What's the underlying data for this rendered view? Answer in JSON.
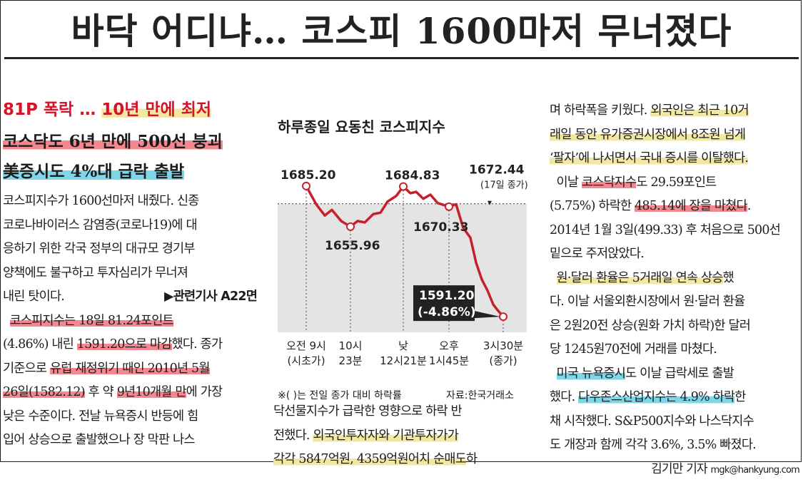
{
  "headline": "바닥 어디냐… 코스피 1600마저 무너졌다",
  "left": {
    "kicker_a": "81P 폭락 … ",
    "kicker_b": "10년 만에 최저",
    "sub1": "코스닥도 6년 만에 500선 붕괴",
    "sub2": "美증시도 4%대 급락 출발",
    "lines": [
      "코스피지수가 1600선마저 내줬다. 신종",
      "코로나바이러스 감염증(코로나19)에 대",
      "응하기 위한 각국 정부의 대규모 경기부",
      "양책에도 불구하고 투자심리가 무너져"
    ],
    "line5": "내린 탓이다.",
    "related": "▶관련기사 A22면",
    "l6a": "코스피지수는 18일 81.24포인트",
    "l7a": "(4.86%) 내린 ",
    "l7b": "1591.20으로 마감",
    "l7c": "했다. 종가",
    "l8a": "기준으로 ",
    "l8b": "유럽 재정위기 때인 2010년 5월",
    "l9a": "26일(1582.12)",
    "l9b": " 후 약 ",
    "l9c": "9년10개월 만",
    "l9d": "에 가장",
    "l10": "낮은 수준이다. 전날 뉴욕증시 반등에 힘",
    "l11": "입어 상승으로 출발했으나 장 막판 나스"
  },
  "chart": {
    "title": "하루종일 요동친 코스피지수",
    "note": "※( )는 전일 종가 대비 하락률",
    "source": "자료:한국거래소",
    "labels": {
      "open": "1685.20",
      "low1": "1655.96",
      "high": "1684.83",
      "prev": "1672.44",
      "prev_sub": "(17일 종가)",
      "mid": "1670.33",
      "close": "1591.20",
      "close_pct": "(-4.86%)"
    },
    "xticks": [
      [
        "오전 9시",
        "(시초가)"
      ],
      [
        "10시",
        "23분"
      ],
      [
        "낮",
        "12시21분"
      ],
      [
        "오후",
        "1시45분"
      ],
      [
        "3시30분",
        "(종가)"
      ]
    ]
  },
  "chart_data": {
    "type": "line",
    "title": "하루종일 요동친 코스피지수",
    "x": [
      "오전 9시(시초가)",
      "10시23분",
      "12시21분",
      "오후 1시45분",
      "3시30분(종가)"
    ],
    "series": [
      {
        "values": [
          1685.2,
          1655.96,
          1684.83,
          1670.33,
          1591.2
        ]
      }
    ],
    "reference_line": 1672.44,
    "ylim": [
      1580,
      1700
    ]
  },
  "mid_body": {
    "l1": "닥선물지수가 급락한 영향으로 하락 반",
    "l2a": "전했다. ",
    "l2b": "외국인투자자와 기관투자가가",
    "l3a": "각각 5847억원, 4359억원어치 순매도",
    "l3b": "하"
  },
  "right": {
    "r1a": "며 하락폭을 키웠다. ",
    "r1b": "외국인은 최근 10거",
    "r2a": "래일 동안 유가증권시장에서 8조원 넘게",
    "r3a": "‘팔자’에 나서면서 국내 증시를 이탈했다.",
    "r4a": "  이날 ",
    "r4b": "코스닥지수",
    "r4c": "도 29.59포인트",
    "r5a": "(5.75%) 하락한 ",
    "r5b": "485.14에 장을 마쳤다",
    "r5c": ".",
    "r6": "2014년 1월 3일(499.33) 후 처음으로 500선",
    "r7": "밑으로 주저앉았다.",
    "r8a": "  ",
    "r8b": "원·달러 환율은 5거래일 연속 상승",
    "r8c": "했",
    "r9": "다. 이날 서울외환시장에서 원·달러 환율",
    "r10": "은 2원20전 상승(원화 가치 하락)한 달러",
    "r11": "당 1245원70전에 거래를 마쳤다.",
    "r12a": "  ",
    "r12b": "미국 뉴욕증시",
    "r12c": "도 이날 급락세로 출발",
    "r13a": "했다. ",
    "r13b": "다우존스산업지수는 4.9% 하락",
    "r13c": "한",
    "r14": "채 시작했다. S&P500지수와 나스닥지수",
    "r15": "도 개장과 함께 각각 3.6%, 3.5% 빠졌다.",
    "byline_name": "김기만 기자 ",
    "byline_email": "mgk@hankyung.com"
  }
}
